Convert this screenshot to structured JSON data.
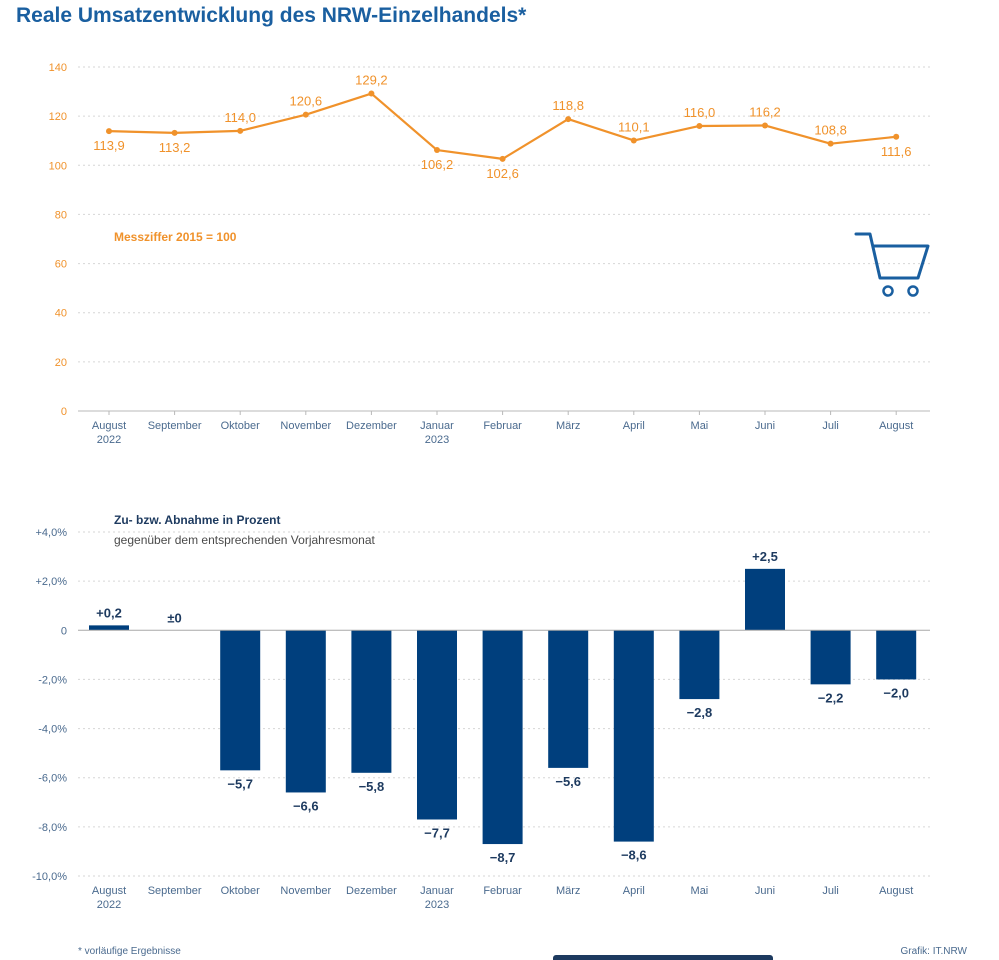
{
  "title": "Reale Umsatzentwicklung des NRW-Einzelhandels*",
  "footnote": "* vorläufige Ergebnisse",
  "credit": "Grafik: IT.NRW",
  "colors": {
    "line": "#f0922b",
    "bar": "#003f7d",
    "title": "#1a5fa0",
    "axis_text": "#4a6a8e"
  },
  "icon": "shopping-cart-icon",
  "chart_data": [
    {
      "type": "line",
      "annotation": "Messziffer 2015 = 100",
      "categories": [
        {
          "label": "August",
          "sub": "2022"
        },
        {
          "label": "September",
          "sub": ""
        },
        {
          "label": "Oktober",
          "sub": ""
        },
        {
          "label": "November",
          "sub": ""
        },
        {
          "label": "Dezember",
          "sub": ""
        },
        {
          "label": "Januar",
          "sub": "2023"
        },
        {
          "label": "Februar",
          "sub": ""
        },
        {
          "label": "März",
          "sub": ""
        },
        {
          "label": "April",
          "sub": ""
        },
        {
          "label": "Mai",
          "sub": ""
        },
        {
          "label": "Juni",
          "sub": ""
        },
        {
          "label": "Juli",
          "sub": ""
        },
        {
          "label": "August",
          "sub": ""
        }
      ],
      "values": [
        113.9,
        113.2,
        114.0,
        120.6,
        129.2,
        106.2,
        102.6,
        118.8,
        110.1,
        116.0,
        116.2,
        108.8,
        111.6
      ],
      "value_labels": [
        "113,9",
        "113,2",
        "114,0",
        "120,6",
        "129,2",
        "106,2",
        "102,6",
        "118,8",
        "110,1",
        "116,0",
        "116,2",
        "108,8",
        "111,6"
      ],
      "label_position": [
        "below",
        "below",
        "above",
        "above",
        "above",
        "below",
        "below",
        "above",
        "above",
        "above",
        "above",
        "above",
        "below"
      ],
      "ylim": [
        0,
        140
      ],
      "yticks": [
        0,
        20,
        40,
        60,
        80,
        100,
        120,
        140
      ],
      "ytick_labels": [
        "0",
        "20",
        "40",
        "60",
        "80",
        "100",
        "120",
        "140"
      ],
      "grid": true
    },
    {
      "type": "bar",
      "title_lines": [
        "Zu- bzw. Abnahme in Prozent",
        "gegenüber dem entsprechenden Vorjahresmonat"
      ],
      "categories": [
        {
          "label": "August",
          "sub": "2022"
        },
        {
          "label": "September",
          "sub": ""
        },
        {
          "label": "Oktober",
          "sub": ""
        },
        {
          "label": "November",
          "sub": ""
        },
        {
          "label": "Dezember",
          "sub": ""
        },
        {
          "label": "Januar",
          "sub": "2023"
        },
        {
          "label": "Februar",
          "sub": ""
        },
        {
          "label": "März",
          "sub": ""
        },
        {
          "label": "April",
          "sub": ""
        },
        {
          "label": "Mai",
          "sub": ""
        },
        {
          "label": "Juni",
          "sub": ""
        },
        {
          "label": "Juli",
          "sub": ""
        },
        {
          "label": "August",
          "sub": ""
        }
      ],
      "values": [
        0.2,
        0.0,
        -5.7,
        -6.6,
        -5.8,
        -7.7,
        -8.7,
        -5.6,
        -8.6,
        -2.8,
        2.5,
        -2.2,
        -2.0
      ],
      "value_labels": [
        "+0,2",
        "±0",
        "−5,7",
        "−6,6",
        "−5,8",
        "−7,7",
        "−8,7",
        "−5,6",
        "−8,6",
        "−2,8",
        "+2,5",
        "−2,2",
        "−2,0"
      ],
      "ylim": [
        -10,
        4
      ],
      "yticks": [
        4,
        2,
        0,
        -2,
        -4,
        -6,
        -8,
        -10
      ],
      "ytick_labels": [
        "+4,0%",
        "+2,0%",
        "0",
        "-2,0%",
        "-4,0%",
        "-6,0%",
        "-8,0%",
        "-10,0%"
      ],
      "grid": true
    }
  ]
}
